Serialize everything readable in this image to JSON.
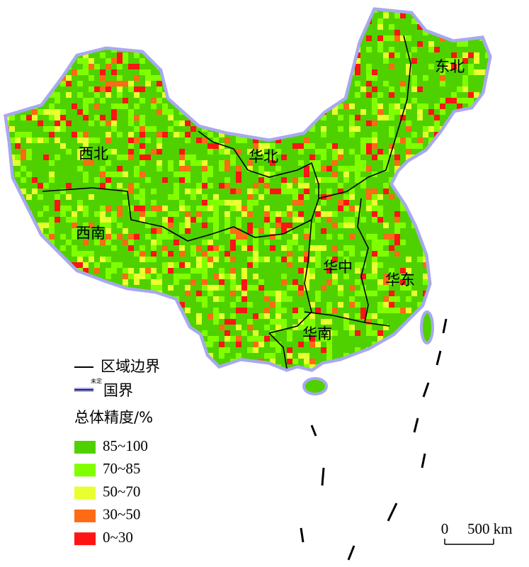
{
  "regions": [
    "西北",
    "华北",
    "东北",
    "西南",
    "华中",
    "华东",
    "华南"
  ],
  "legend": {
    "boundary_region": "区域边界",
    "boundary_country": "国界",
    "undetermined": "未定",
    "title": "总体精度/%",
    "classes": [
      {
        "label": "85~100",
        "color": "#4fd100"
      },
      {
        "label": "70~85",
        "color": "#80ff00"
      },
      {
        "label": "50~70",
        "color": "#e8ff30"
      },
      {
        "label": "30~50",
        "color": "#ff6a14"
      },
      {
        "label": "0~30",
        "color": "#ff1414"
      }
    ]
  },
  "scale_bar": {
    "start": "0",
    "end": "500 km"
  }
}
